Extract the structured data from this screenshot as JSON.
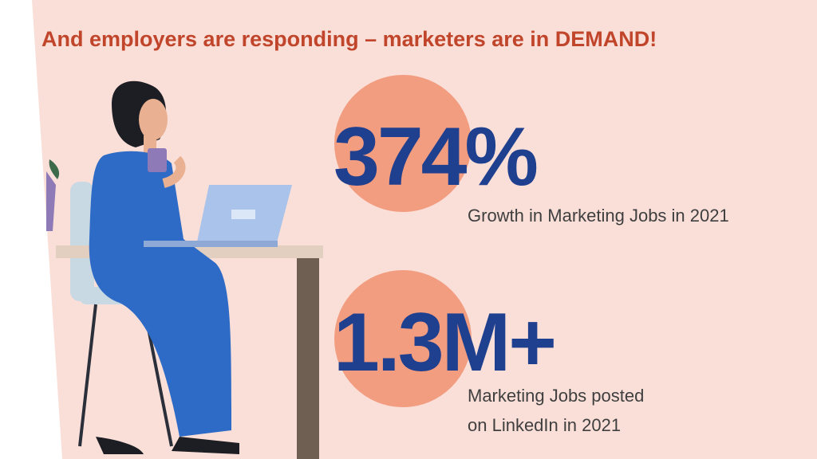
{
  "title": "And employers are responding – marketers are in DEMAND!",
  "stats": [
    {
      "value": "374%",
      "label_lines": [
        "Growth in Marketing Jobs in 2021"
      ]
    },
    {
      "value": "1.3M+",
      "label_lines": [
        "Marketing Jobs posted",
        "on LinkedIn in 2021"
      ]
    }
  ]
}
